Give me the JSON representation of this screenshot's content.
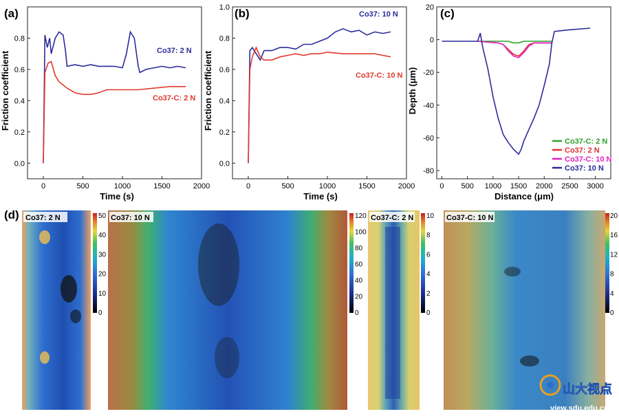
{
  "chart_data": [
    {
      "panel_label": "(a)",
      "type": "line",
      "xlabel": "Time (s)",
      "ylabel": "Friction coefficient",
      "xlim": [
        -200,
        2000
      ],
      "ylim": [
        -0.1,
        1.0
      ],
      "xticks": [
        0,
        500,
        1000,
        1500,
        2000
      ],
      "yticks": [
        0.0,
        0.2,
        0.4,
        0.6,
        0.8
      ],
      "series": [
        {
          "name": "Co37: 2 N",
          "color": "#2a2a9a",
          "x": [
            0,
            20,
            50,
            80,
            100,
            150,
            200,
            250,
            280,
            300,
            400,
            500,
            600,
            700,
            800,
            900,
            1000,
            1050,
            1100,
            1150,
            1200,
            1220,
            1300,
            1400,
            1500,
            1600,
            1700,
            1800
          ],
          "y": [
            0.0,
            0.82,
            0.74,
            0.8,
            0.7,
            0.8,
            0.84,
            0.82,
            0.72,
            0.62,
            0.63,
            0.62,
            0.63,
            0.62,
            0.62,
            0.62,
            0.61,
            0.7,
            0.84,
            0.8,
            0.62,
            0.58,
            0.6,
            0.61,
            0.62,
            0.61,
            0.62,
            0.61
          ]
        },
        {
          "name": "Co37-C: 2 N",
          "color": "#e0392b",
          "x": [
            0,
            20,
            60,
            100,
            150,
            200,
            300,
            400,
            500,
            600,
            700,
            800,
            900,
            1000,
            1200,
            1400,
            1600,
            1800
          ],
          "y": [
            0.0,
            0.58,
            0.64,
            0.65,
            0.56,
            0.52,
            0.48,
            0.45,
            0.44,
            0.44,
            0.45,
            0.47,
            0.47,
            0.47,
            0.47,
            0.48,
            0.49,
            0.49
          ]
        }
      ]
    },
    {
      "panel_label": "(b)",
      "type": "line",
      "xlabel": "Time (s)",
      "ylabel": "Friction coefficient",
      "xlim": [
        -200,
        2000
      ],
      "ylim": [
        -0.1,
        1.0
      ],
      "xticks": [
        0,
        500,
        1000,
        1500,
        2000
      ],
      "yticks": [
        0.0,
        0.2,
        0.4,
        0.6,
        0.8,
        1.0
      ],
      "series": [
        {
          "name": "Co37: 10 N",
          "color": "#2a2a9a",
          "x": [
            0,
            20,
            50,
            100,
            150,
            200,
            300,
            400,
            500,
            600,
            700,
            800,
            900,
            1000,
            1100,
            1200,
            1300,
            1400,
            1500,
            1600,
            1700,
            1800
          ],
          "y": [
            0.0,
            0.72,
            0.74,
            0.7,
            0.66,
            0.72,
            0.72,
            0.74,
            0.74,
            0.73,
            0.76,
            0.76,
            0.78,
            0.8,
            0.84,
            0.86,
            0.84,
            0.85,
            0.82,
            0.84,
            0.83,
            0.84
          ]
        },
        {
          "name": "Co37-C: 10 N",
          "color": "#e0392b",
          "x": [
            0,
            20,
            50,
            100,
            150,
            200,
            300,
            400,
            500,
            600,
            700,
            800,
            900,
            1000,
            1200,
            1400,
            1600,
            1700,
            1800
          ],
          "y": [
            0.0,
            0.6,
            0.68,
            0.74,
            0.68,
            0.66,
            0.66,
            0.68,
            0.69,
            0.7,
            0.69,
            0.7,
            0.7,
            0.71,
            0.7,
            0.7,
            0.7,
            0.69,
            0.68
          ]
        }
      ]
    },
    {
      "panel_label": "(c)",
      "type": "line",
      "xlabel": "Distance (μm)",
      "ylabel": "Depth (μm)",
      "xlim": [
        -100,
        3300
      ],
      "ylim": [
        -85,
        20
      ],
      "xticks": [
        0,
        500,
        1000,
        1500,
        2000,
        2500,
        3000
      ],
      "yticks": [
        20,
        0,
        -20,
        -40,
        -60,
        -80
      ],
      "legend_position": "lower-right",
      "series": [
        {
          "name": "Co37-C: 2 N",
          "color": "#2ca02c",
          "x": [
            700,
            1200,
            1300,
            1400,
            1500,
            1600,
            1700,
            2150
          ],
          "y": [
            -1,
            -1,
            -1,
            -2,
            -2,
            -1,
            -1,
            -1
          ]
        },
        {
          "name": "Co37: 2 N",
          "color": "#e03030",
          "x": [
            700,
            1100,
            1200,
            1300,
            1400,
            1500,
            1600,
            1700,
            1800,
            2150
          ],
          "y": [
            -1,
            -2,
            -3,
            -6,
            -9,
            -10,
            -7,
            -3,
            -2,
            -2
          ]
        },
        {
          "name": "Co37-C: 10 N",
          "color": "#e020c0",
          "x": [
            700,
            1100,
            1200,
            1300,
            1400,
            1500,
            1600,
            1700,
            1800,
            2150
          ],
          "y": [
            -1,
            -2,
            -3,
            -7,
            -10,
            -11,
            -8,
            -4,
            -2,
            -2
          ]
        },
        {
          "name": "Co37: 10 N",
          "color": "#2a2a9a",
          "x": [
            0,
            500,
            700,
            750,
            800,
            900,
            1000,
            1100,
            1200,
            1300,
            1400,
            1500,
            1550,
            1600,
            1700,
            1800,
            1900,
            2000,
            2100,
            2150,
            2200,
            2500,
            2900
          ],
          "y": [
            -1,
            -1,
            -1,
            4,
            -5,
            -18,
            -35,
            -48,
            -58,
            -63,
            -67,
            -70,
            -67,
            -62,
            -55,
            -48,
            -40,
            -28,
            -15,
            -2,
            5,
            6,
            7
          ]
        }
      ]
    }
  ],
  "panel_d": {
    "label": "(d)",
    "maps": [
      {
        "title": "Co37: 2 N",
        "cbar_ticks": [
          "50",
          "40",
          "30",
          "20",
          "10",
          "0"
        ]
      },
      {
        "title": "Co37: 10 N",
        "cbar_ticks": [
          "120",
          "100",
          "80",
          "60",
          "40",
          "20",
          "0"
        ]
      },
      {
        "title": "Co37-C: 2 N",
        "cbar_ticks": [
          "10",
          "8",
          "6",
          "4",
          "2",
          "0"
        ]
      },
      {
        "title": "Co37-C: 10 N",
        "cbar_ticks": [
          "20",
          "16",
          "12",
          "8",
          "4",
          "0"
        ]
      }
    ]
  },
  "watermark": {
    "text": "山大视点",
    "url": "view.sdu.edu.cn"
  }
}
